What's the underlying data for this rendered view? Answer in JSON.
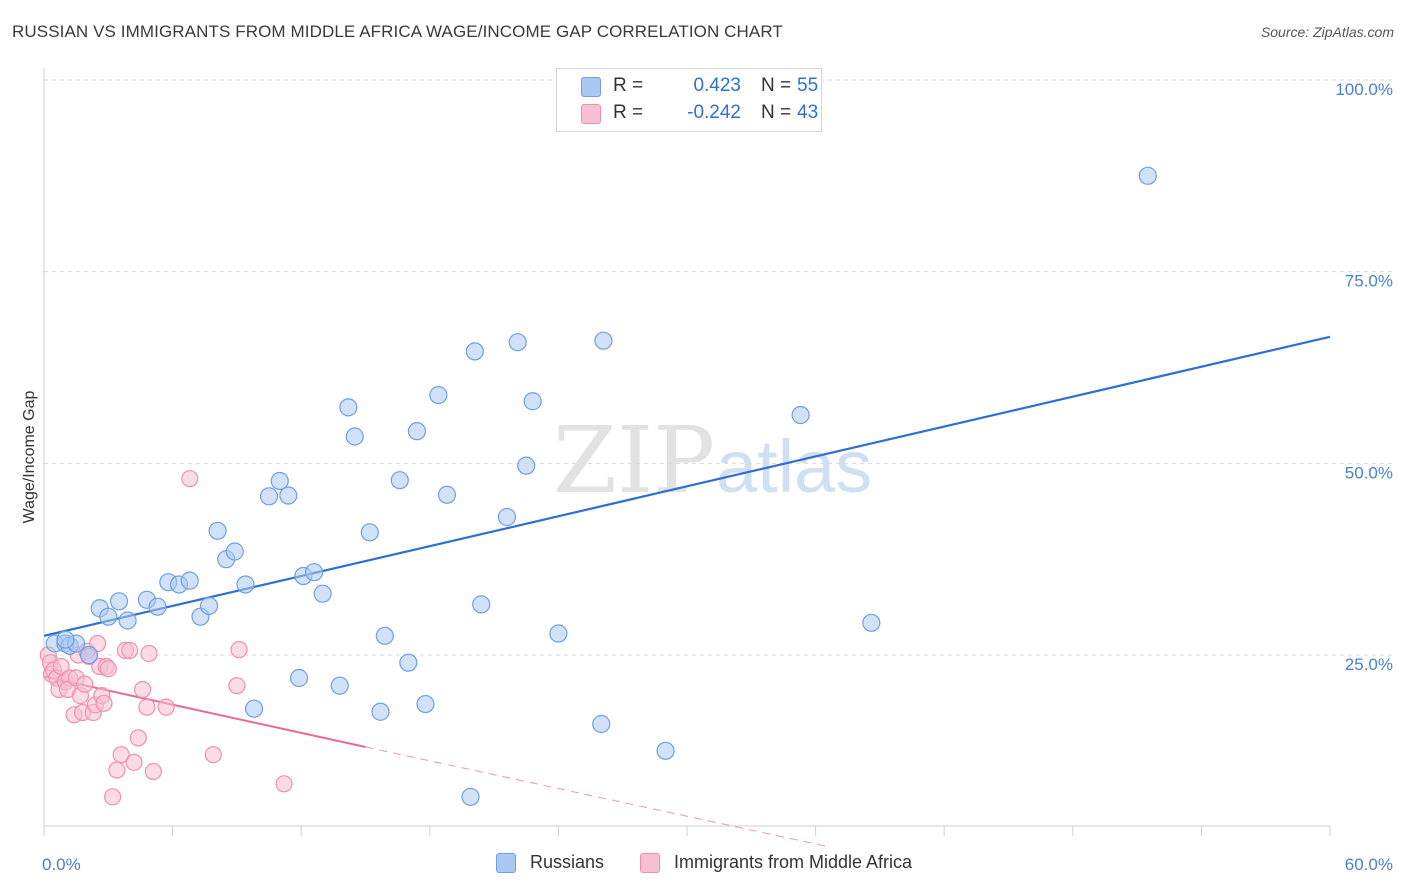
{
  "title": "RUSSIAN VS IMMIGRANTS FROM MIDDLE AFRICA WAGE/INCOME GAP CORRELATION CHART",
  "source": "Source: ZipAtlas.com",
  "watermark": {
    "zip": "ZIP",
    "atlas": "atlas"
  },
  "colors": {
    "blue_fill": "#a9c9f2",
    "blue_stroke": "#6fa0e0",
    "blue_line": "#2f6fd0",
    "pink_fill": "#f7bfd2",
    "pink_stroke": "#ee8fb0",
    "pink_line": "#e66a98",
    "axis_text": "#4a7fd0",
    "grid": "#d9d9d9"
  },
  "stats_legend": {
    "rows": [
      {
        "r_label": "R =",
        "r_value": "0.423",
        "n_label": "N =",
        "n_value": "55",
        "color": "#a9c9f2",
        "stroke": "#6fa0e0"
      },
      {
        "r_label": "R =",
        "r_value": "-0.242",
        "n_label": "N =",
        "n_value": "43",
        "color": "#f7bfd2",
        "stroke": "#ee8fb0"
      }
    ]
  },
  "legend": {
    "items": [
      {
        "label": "Russians",
        "color": "#a9c9f2",
        "stroke": "#6fa0e0"
      },
      {
        "label": "Immigrants from Middle Africa",
        "color": "#f7bfd2",
        "stroke": "#ee8fb0"
      }
    ]
  },
  "chart_data": {
    "type": "scatter",
    "title": "RUSSIAN VS IMMIGRANTS FROM MIDDLE AFRICA WAGE/INCOME GAP CORRELATION CHART",
    "xlabel": "",
    "ylabel": "Wage/Income Gap",
    "xlim": [
      0,
      60
    ],
    "ylim": [
      0,
      105
    ],
    "x_tick_labels": [
      "0.0%",
      "60.0%"
    ],
    "y_ticks": [
      25,
      50,
      75,
      100
    ],
    "y_tick_labels": [
      "25.0%",
      "50.0%",
      "75.0%",
      "100.0%"
    ],
    "grid": true,
    "legend_position": "bottom-center",
    "series": [
      {
        "name": "Russians",
        "r": 0.423,
        "n": 55,
        "trend": {
          "x": [
            0,
            60
          ],
          "y": [
            27.5,
            66.5
          ],
          "style": "solid"
        },
        "points": [
          [
            0.5,
            26.5
          ],
          [
            1.0,
            26.5
          ],
          [
            1.2,
            26.2
          ],
          [
            1.5,
            26.5
          ],
          [
            2.1,
            25.0
          ],
          [
            2.6,
            31.1
          ],
          [
            3.0,
            30.0
          ],
          [
            3.5,
            32.0
          ],
          [
            3.9,
            29.5
          ],
          [
            4.8,
            32.2
          ],
          [
            5.3,
            31.3
          ],
          [
            5.8,
            34.5
          ],
          [
            6.3,
            34.2
          ],
          [
            6.8,
            34.7
          ],
          [
            7.3,
            30.0
          ],
          [
            7.7,
            31.4
          ],
          [
            8.1,
            41.2
          ],
          [
            8.5,
            37.5
          ],
          [
            8.9,
            38.5
          ],
          [
            9.4,
            34.2
          ],
          [
            9.8,
            18.0
          ],
          [
            10.5,
            45.7
          ],
          [
            11.0,
            47.7
          ],
          [
            11.4,
            45.8
          ],
          [
            11.9,
            22.0
          ],
          [
            12.1,
            35.3
          ],
          [
            12.6,
            35.8
          ],
          [
            13.0,
            33.0
          ],
          [
            13.8,
            21.0
          ],
          [
            14.2,
            57.3
          ],
          [
            14.5,
            53.5
          ],
          [
            15.2,
            41.0
          ],
          [
            15.7,
            17.6
          ],
          [
            15.9,
            27.5
          ],
          [
            16.6,
            47.8
          ],
          [
            17.0,
            24.0
          ],
          [
            17.4,
            54.2
          ],
          [
            17.8,
            18.6
          ],
          [
            18.4,
            58.9
          ],
          [
            18.8,
            45.9
          ],
          [
            19.9,
            6.5
          ],
          [
            20.1,
            64.6
          ],
          [
            20.4,
            31.6
          ],
          [
            21.6,
            43.0
          ],
          [
            22.1,
            65.8
          ],
          [
            22.5,
            49.7
          ],
          [
            22.8,
            58.1
          ],
          [
            24.0,
            27.8
          ],
          [
            26.0,
            16.0
          ],
          [
            26.1,
            66.0
          ],
          [
            29.0,
            12.5
          ],
          [
            35.3,
            56.3
          ],
          [
            38.6,
            29.2
          ],
          [
            51.5,
            87.5
          ],
          [
            1.0,
            27.0
          ]
        ]
      },
      {
        "name": "Immigrants from Middle Africa",
        "r": -0.242,
        "n": 43,
        "trend": {
          "x": [
            0,
            15
          ],
          "y": [
            22.2,
            13.0
          ],
          "style": "solid",
          "dashed_extension_to": [
            36.6,
            0
          ]
        },
        "points": [
          [
            0.2,
            25.0
          ],
          [
            0.3,
            24.0
          ],
          [
            0.35,
            22.5
          ],
          [
            0.45,
            23.0
          ],
          [
            0.6,
            22.0
          ],
          [
            0.8,
            23.5
          ],
          [
            0.7,
            20.5
          ],
          [
            1.0,
            21.5
          ],
          [
            1.2,
            22.0
          ],
          [
            1.1,
            20.5
          ],
          [
            1.4,
            17.2
          ],
          [
            1.5,
            22.0
          ],
          [
            1.6,
            25.0
          ],
          [
            1.7,
            19.7
          ],
          [
            1.8,
            17.5
          ],
          [
            1.9,
            21.2
          ],
          [
            2.0,
            25.5
          ],
          [
            2.1,
            24.8
          ],
          [
            2.3,
            17.5
          ],
          [
            2.4,
            18.5
          ],
          [
            2.5,
            26.5
          ],
          [
            2.6,
            23.5
          ],
          [
            2.7,
            19.7
          ],
          [
            2.8,
            18.7
          ],
          [
            2.9,
            23.5
          ],
          [
            3.0,
            23.2
          ],
          [
            3.2,
            6.5
          ],
          [
            3.4,
            10.0
          ],
          [
            3.6,
            12.0
          ],
          [
            3.8,
            25.6
          ],
          [
            4.0,
            25.6
          ],
          [
            4.2,
            11.0
          ],
          [
            4.4,
            14.2
          ],
          [
            4.6,
            20.5
          ],
          [
            4.8,
            18.2
          ],
          [
            4.9,
            25.2
          ],
          [
            5.1,
            9.8
          ],
          [
            5.7,
            18.2
          ],
          [
            6.8,
            48.0
          ],
          [
            7.9,
            12.0
          ],
          [
            9.0,
            21.0
          ],
          [
            9.1,
            25.7
          ],
          [
            11.2,
            8.2
          ]
        ]
      }
    ]
  }
}
